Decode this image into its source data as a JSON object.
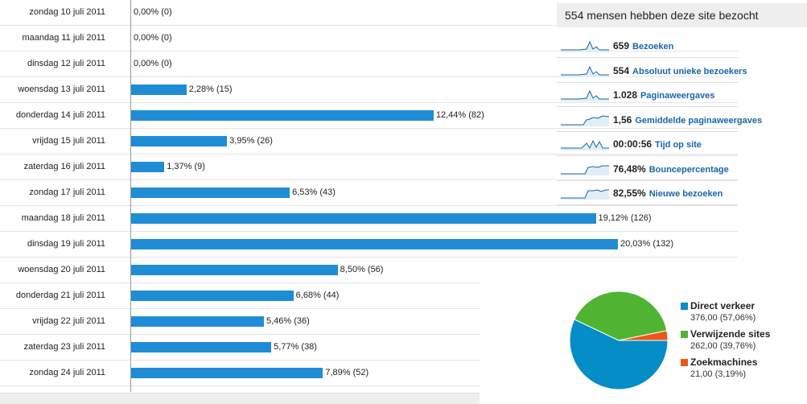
{
  "chart_data": [
    {
      "type": "bar",
      "orientation": "horizontal",
      "categories": [
        "zondag 10 juli 2011",
        "maandag 11 juli 2011",
        "dinsdag 12 juli 2011",
        "woensdag 13 juli 2011",
        "donderdag 14 juli 2011",
        "vrijdag 15 juli 2011",
        "zaterdag 16 juli 2011",
        "zondag 17 juli 2011",
        "maandag 18 juli 2011",
        "dinsdag 19 juli 2011",
        "woensdag 20 juli 2011",
        "donderdag 21 juli 2011",
        "vrijdag 22 juli 2011",
        "zaterdag 23 juli 2011",
        "zondag 24 juli 2011"
      ],
      "values": [
        0,
        0,
        0,
        15,
        82,
        26,
        9,
        43,
        126,
        132,
        56,
        44,
        36,
        38,
        52
      ],
      "value_labels": [
        "0,00% (0)",
        "0,00% (0)",
        "0,00% (0)",
        "2,28% (15)",
        "12,44% (82)",
        "3,95% (26)",
        "1,37% (9)",
        "6,53% (43)",
        "19,12% (126)",
        "20,03% (132)",
        "8,50% (56)",
        "6,68% (44)",
        "5,46% (36)",
        "5,77% (38)",
        "7,89% (52)"
      ],
      "xlim": [
        0,
        132
      ],
      "grid": false,
      "bar_color": "#1f8dd6"
    },
    {
      "type": "pie",
      "categories": [
        "Direct verkeer",
        "Verwijzende sites",
        "Zoekmachines"
      ],
      "values": [
        376,
        262,
        21
      ],
      "value_labels": [
        "376,00 (57,06%)",
        "262,00 (39,76%)",
        "21,00 (3,19%)"
      ],
      "colors": [
        "#058dc7",
        "#50b432",
        "#ed561b"
      ],
      "legend_position": "right"
    }
  ],
  "summary": {
    "title": "554 mensen hebben deze site bezocht",
    "metrics": [
      {
        "value": "659",
        "label": "Bezoeken",
        "icon": "sparkline-icon"
      },
      {
        "value": "554",
        "label": "Absoluut unieke bezoekers",
        "icon": "sparkline-icon"
      },
      {
        "value": "1.028",
        "label": "Paginaweergaves",
        "icon": "sparkline-icon"
      },
      {
        "value": "1,56",
        "label": "Gemiddelde paginaweergaves",
        "icon": "sparkline-icon"
      },
      {
        "value": "00:00:56",
        "label": "Tijd op site",
        "icon": "sparkline-icon"
      },
      {
        "value": "76,48%",
        "label": "Bouncepercentage",
        "icon": "sparkline-icon"
      },
      {
        "value": "82,55%",
        "label": "Nieuwe bezoeken",
        "icon": "sparkline-icon"
      }
    ],
    "sparkline_color": "#1a64a8"
  }
}
